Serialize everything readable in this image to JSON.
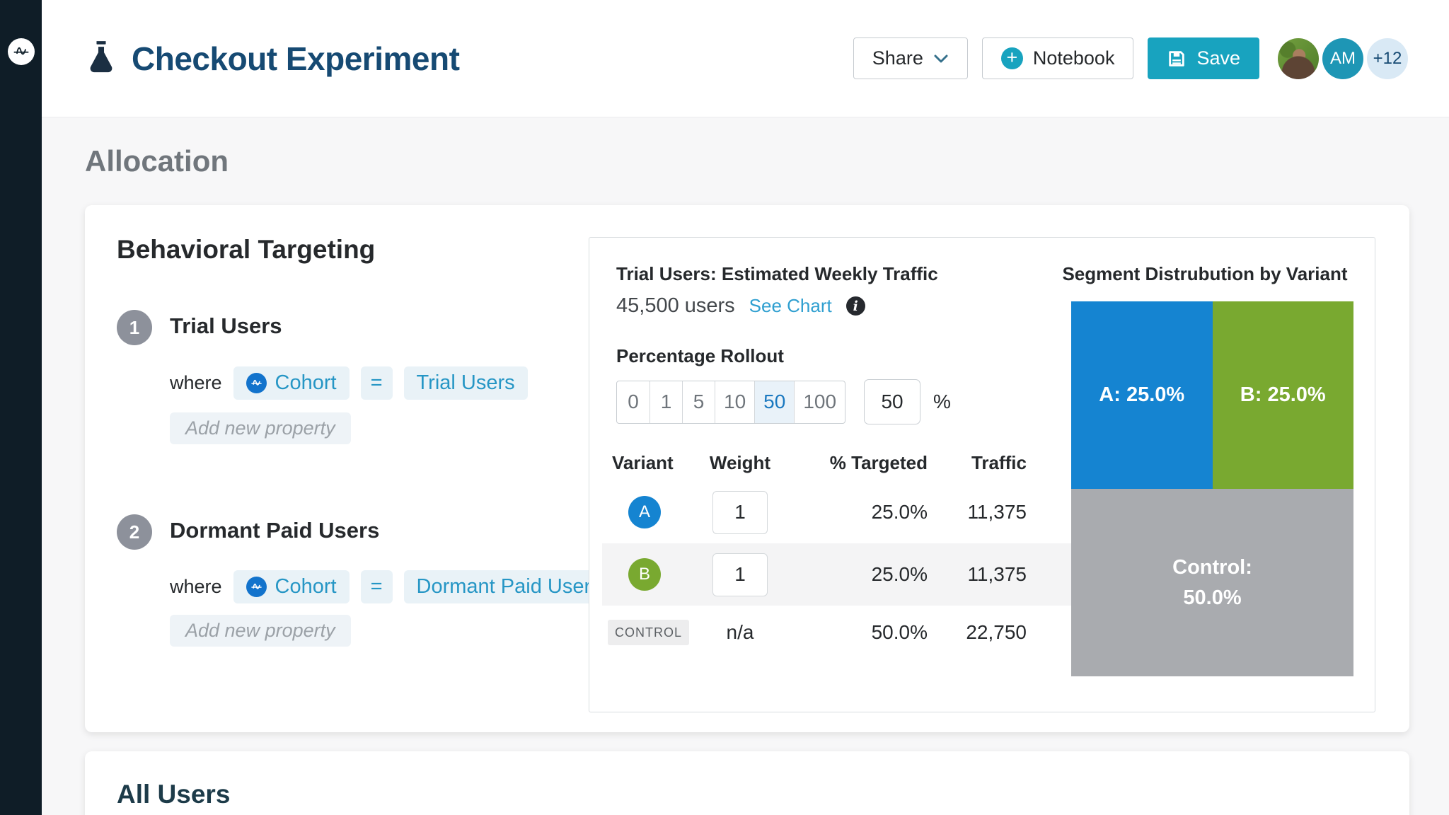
{
  "colors": {
    "accent_teal": "#18a3bf",
    "link_blue": "#2f9fd0",
    "selected_preset_blue": "#1b79c0",
    "title_navy": "#164a73",
    "variant_a_blue": "#1584d1",
    "variant_b_green": "#79a930",
    "control_gray": "#a9abaf",
    "rail_dark": "#0f1d27"
  },
  "icons": {
    "rail_logo": "amplitude-logo-icon",
    "title_icon": "flask-icon",
    "share_chevron": "chevron-down-icon",
    "notebook_icon": "plus-circle-icon",
    "save_icon": "floppy-disk-icon",
    "cohort_icon": "amplitude-logo-icon",
    "traffic_info": "info-icon"
  },
  "header": {
    "title": "Checkout Experiment",
    "share_label": "Share",
    "notebook_label": "Notebook",
    "save_label": "Save",
    "avatars": {
      "initials": "AM",
      "overflow": "+12"
    }
  },
  "allocation": {
    "section_title": "Allocation",
    "card_title": "Behavioral Targeting",
    "segments": [
      {
        "index": "1",
        "name": "Trial Users",
        "where_label": "where",
        "property": "Cohort",
        "operator": "=",
        "value": "Trial Users",
        "add_property_placeholder": "Add new property"
      },
      {
        "index": "2",
        "name": "Dormant Paid Users",
        "where_label": "where",
        "property": "Cohort",
        "operator": "=",
        "value": "Dormant Paid Users",
        "add_property_placeholder": "Add new property"
      }
    ]
  },
  "traffic_panel": {
    "title": "Trial Users: Estimated Weekly Traffic",
    "estimate": "45,500 users",
    "see_chart_label": "See Chart",
    "rollout": {
      "label": "Percentage Rollout",
      "presets": [
        "0",
        "1",
        "5",
        "10",
        "50",
        "100"
      ],
      "selected_preset": "50",
      "custom_value": "50",
      "unit": "%"
    },
    "table": {
      "headers": {
        "variant": "Variant",
        "weight": "Weight",
        "targeted": "% Targeted",
        "traffic": "Traffic"
      },
      "rows": [
        {
          "variant": "A",
          "weight": "1",
          "targeted": "25.0%",
          "traffic": "11,375"
        },
        {
          "variant": "B",
          "weight": "1",
          "targeted": "25.0%",
          "traffic": "11,375"
        },
        {
          "variant": "CONTROL",
          "weight": "n/a",
          "targeted": "50.0%",
          "traffic": "22,750"
        }
      ]
    }
  },
  "chart_data": {
    "type": "stacked-rect",
    "title": "Segment Distrubution by Variant",
    "segments": [
      {
        "name": "A",
        "label": "A: 25.0%",
        "value": 25.0,
        "color": "#1584d1"
      },
      {
        "name": "B",
        "label": "B: 25.0%",
        "value": 25.0,
        "color": "#79a930"
      },
      {
        "name": "Control",
        "label_line1": "Control:",
        "label_line2": "50.0%",
        "value": 50.0,
        "color": "#a9abaf"
      }
    ]
  },
  "next_section": {
    "title": "All Users"
  }
}
